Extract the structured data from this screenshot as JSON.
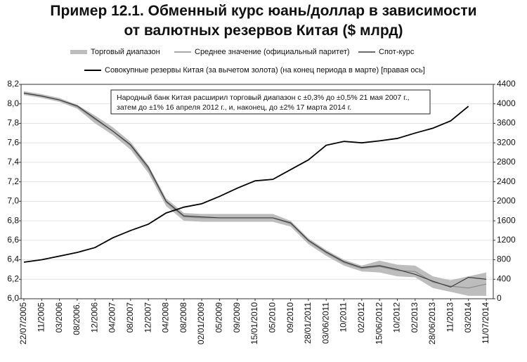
{
  "chart_data": {
    "type": "line",
    "title": [
      "Пример 12.1. Обменный курс юань/доллар в зависимости",
      "от валютных резервов Китая ($ млрд)"
    ],
    "annotation": [
      "Народный банк Китая расширил торговый диапазон с ±0,3% до ±0,5% 21 мая 2007 г.,",
      "затем до ±1% 16 апреля 2012 г., и, наконец, до ±2% 17 марта 2014 г."
    ],
    "categories": [
      "22/07/2005",
      "11/2005",
      "03/2006",
      "08/2006.",
      "12/2006",
      "04/2007",
      "08/2007",
      "12/2007",
      "04/2008",
      "08/2008",
      "02/01/2009",
      "05/2009",
      "09/2009",
      "15/01/2010",
      "05/2010",
      "09/2010",
      "28/01/2011",
      "03/06/2011",
      "10/2011",
      "02/2012",
      "15/06/2012",
      "10/2012",
      "02/2013",
      "28/06/2013",
      "11/2013",
      "03/2014",
      "11/07/2014"
    ],
    "series": [
      {
        "name": "Торговый диапазон",
        "color": "#bdbdbd",
        "band": true,
        "high": [
          8.13,
          8.1,
          8.06,
          7.99,
          7.88,
          7.76,
          7.61,
          7.37,
          7.03,
          6.88,
          6.87,
          6.87,
          6.87,
          6.87,
          6.87,
          6.8,
          6.62,
          6.5,
          6.4,
          6.34,
          6.39,
          6.35,
          6.34,
          6.23,
          6.19,
          6.23,
          6.27
        ],
        "low": [
          8.09,
          8.06,
          8.02,
          7.95,
          7.8,
          7.68,
          7.53,
          7.29,
          6.95,
          6.8,
          6.79,
          6.79,
          6.79,
          6.79,
          6.79,
          6.74,
          6.56,
          6.44,
          6.34,
          6.28,
          6.27,
          6.23,
          6.22,
          6.11,
          6.07,
          6.03,
          6.03
        ]
      },
      {
        "name": "Среднее значение (официальный паритет)",
        "color": "#8c8c8c",
        "values": [
          8.11,
          8.08,
          8.04,
          7.97,
          7.84,
          7.72,
          7.57,
          7.33,
          6.99,
          6.84,
          6.83,
          6.83,
          6.83,
          6.83,
          6.83,
          6.77,
          6.59,
          6.47,
          6.37,
          6.31,
          6.33,
          6.29,
          6.28,
          6.17,
          6.13,
          6.11,
          6.15
        ]
      },
      {
        "name": "Спот-курс",
        "color": "#3a3a3a",
        "values": [
          8.11,
          8.08,
          8.04,
          7.98,
          7.85,
          7.72,
          7.58,
          7.35,
          7.0,
          6.85,
          6.84,
          6.83,
          6.83,
          6.83,
          6.83,
          6.78,
          6.6,
          6.48,
          6.38,
          6.32,
          6.34,
          6.3,
          6.25,
          6.18,
          6.12,
          6.22,
          6.2
        ]
      },
      {
        "name": "Совокупные резервы Китая (за вычетом золота) (на конец периода в марте) [правая ось]",
        "color": "#000000",
        "axis": "y2",
        "values": [
          750,
          800,
          875,
          950,
          1050,
          1250,
          1400,
          1530,
          1760,
          1880,
          1950,
          2100,
          2270,
          2420,
          2450,
          2650,
          2850,
          3150,
          3230,
          3200,
          3240,
          3290,
          3400,
          3500,
          3650,
          3950,
          null
        ]
      }
    ],
    "ylim": [
      6.0,
      8.2
    ],
    "yticks": [
      {
        "value": 6.0,
        "label": "6,0"
      },
      {
        "value": 6.2,
        "label": "6,2"
      },
      {
        "value": 6.4,
        "label": "6,4"
      },
      {
        "value": 6.6,
        "label": "6,6"
      },
      {
        "value": 6.8,
        "label": "6,8"
      },
      {
        "value": 7.0,
        "label": "7,0"
      },
      {
        "value": 7.2,
        "label": "7,2"
      },
      {
        "value": 7.4,
        "label": "7,4"
      },
      {
        "value": 7.6,
        "label": "7,6"
      },
      {
        "value": 7.8,
        "label": "7,8"
      },
      {
        "value": 8.0,
        "label": "8,0"
      },
      {
        "value": 8.2,
        "label": "8,2"
      }
    ],
    "y2lim": [
      0,
      4400
    ],
    "y2ticks": [
      0,
      400,
      800,
      1200,
      1600,
      2000,
      2400,
      2800,
      3200,
      3600,
      4000,
      4400
    ],
    "grid": true
  }
}
